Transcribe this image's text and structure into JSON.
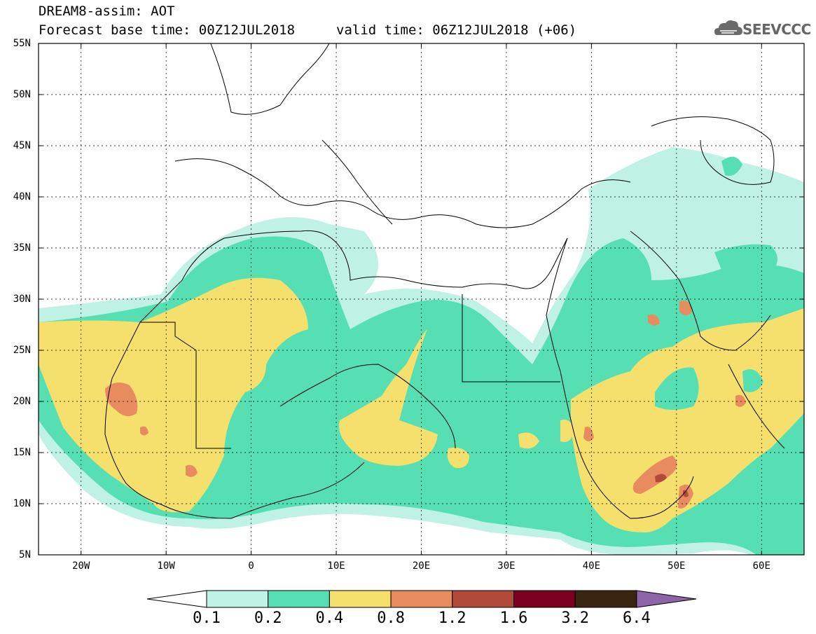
{
  "header": {
    "title": "DREAM8-assim: AOT",
    "base_time": "Forecast base time: 00Z12JUL2018",
    "valid_time": "valid time: 06Z12JUL2018 (+06)"
  },
  "logo": {
    "text": "SEEVCCC",
    "icon": "cloud-icon"
  },
  "map": {
    "lat_labels": [
      "55N",
      "50N",
      "45N",
      "40N",
      "35N",
      "30N",
      "25N",
      "20N",
      "15N",
      "10N",
      "5N"
    ],
    "lon_labels": [
      "20W",
      "10W",
      "0",
      "10E",
      "20E",
      "30E",
      "40E",
      "50E",
      "60E"
    ],
    "extent": {
      "lon": [
        -25,
        65
      ],
      "lat": [
        5,
        55
      ]
    }
  },
  "colorbar": {
    "labels": [
      "0.1",
      "0.2",
      "0.4",
      "0.8",
      "1.2",
      "1.6",
      "3.2",
      "6.4"
    ],
    "colors": [
      "#ffffff",
      "#bff2e4",
      "#56dfb2",
      "#f5e06e",
      "#e88b5f",
      "#b14a3a",
      "#7a0020",
      "#3a2512",
      "#8e64a8"
    ]
  }
}
